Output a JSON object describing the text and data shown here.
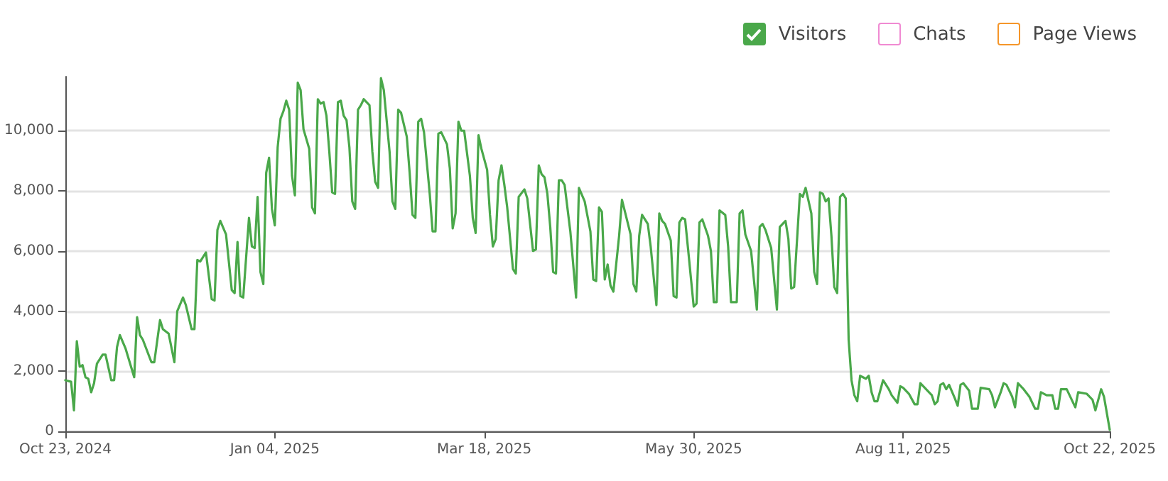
{
  "chart_data": {
    "type": "line",
    "legend": "top right",
    "grid": "y",
    "marker": "none",
    "line_style": "solid",
    "xlim": [
      "2024-10-23",
      "2025-10-22"
    ],
    "xticks": [
      {
        "value": "2024-10-23",
        "label": "Oct 23, 2024"
      },
      {
        "value": "2025-01-04",
        "label": "Jan 04, 2025"
      },
      {
        "value": "2025-03-18",
        "label": "Mar 18, 2025"
      },
      {
        "value": "2025-05-30",
        "label": "May 30, 2025"
      },
      {
        "value": "2025-08-11",
        "label": "Aug 11, 2025"
      },
      {
        "value": "2025-10-22",
        "label": "Oct 22, 2025"
      }
    ],
    "ylim": [
      0,
      11800
    ],
    "yticks": [
      0,
      {
        "value": 2000,
        "label": "2,000"
      },
      {
        "value": 4000,
        "label": "4,000"
      },
      {
        "value": 6000,
        "label": "6,000"
      },
      {
        "value": 8000,
        "label": "8,000"
      },
      {
        "value": 10000,
        "label": "10,000"
      }
    ],
    "series": [
      {
        "name": "Visitors",
        "color": "#4aa84a",
        "x": [
          "2024-10-23",
          "2024-10-25",
          "2024-10-26",
          "2024-10-27",
          "2024-10-28",
          "2024-10-29",
          "2024-10-30",
          "2024-10-31",
          "2024-11-01",
          "2024-11-02",
          "2024-11-03",
          "2024-11-05",
          "2024-11-06",
          "2024-11-08",
          "2024-11-09",
          "2024-11-10",
          "2024-11-11",
          "2024-11-13",
          "2024-11-16",
          "2024-11-17",
          "2024-11-18",
          "2024-11-19",
          "2024-11-22",
          "2024-11-23",
          "2024-11-25",
          "2024-11-26",
          "2024-11-28",
          "2024-11-30",
          "2024-12-01",
          "2024-12-03",
          "2024-12-04",
          "2024-12-06",
          "2024-12-07",
          "2024-12-08",
          "2024-12-09",
          "2024-12-11",
          "2024-12-13",
          "2024-12-14",
          "2024-12-15",
          "2024-12-16",
          "2024-12-18",
          "2024-12-20",
          "2024-12-21",
          "2024-12-22",
          "2024-12-23",
          "2024-12-24",
          "2024-12-26",
          "2024-12-27",
          "2024-12-28",
          "2024-12-29",
          "2024-12-30",
          "2024-12-31",
          "2025-01-01",
          "2025-01-02",
          "2025-01-03",
          "2025-01-04",
          "2025-01-05",
          "2025-01-06",
          "2025-01-07",
          "2025-01-08",
          "2025-01-09",
          "2025-01-10",
          "2025-01-11",
          "2025-01-12",
          "2025-01-13",
          "2025-01-14",
          "2025-01-16",
          "2025-01-17",
          "2025-01-18",
          "2025-01-19",
          "2025-01-20",
          "2025-01-21",
          "2025-01-22",
          "2025-01-23",
          "2025-01-24",
          "2025-01-25",
          "2025-01-26",
          "2025-01-27",
          "2025-01-28",
          "2025-01-29",
          "2025-01-30",
          "2025-01-31",
          "2025-02-01",
          "2025-02-02",
          "2025-02-03",
          "2025-02-04",
          "2025-02-06",
          "2025-02-07",
          "2025-02-08",
          "2025-02-09",
          "2025-02-10",
          "2025-02-11",
          "2025-02-13",
          "2025-02-14",
          "2025-02-15",
          "2025-02-16",
          "2025-02-17",
          "2025-02-19",
          "2025-02-20",
          "2025-02-21",
          "2025-02-22",
          "2025-02-23",
          "2025-02-24",
          "2025-02-25",
          "2025-02-27",
          "2025-02-28",
          "2025-03-01",
          "2025-03-02",
          "2025-03-03",
          "2025-03-05",
          "2025-03-06",
          "2025-03-07",
          "2025-03-08",
          "2025-03-09",
          "2025-03-10",
          "2025-03-11",
          "2025-03-13",
          "2025-03-14",
          "2025-03-15",
          "2025-03-16",
          "2025-03-17",
          "2025-03-19",
          "2025-03-20",
          "2025-03-21",
          "2025-03-22",
          "2025-03-23",
          "2025-03-24",
          "2025-03-25",
          "2025-03-26",
          "2025-03-28",
          "2025-03-29",
          "2025-03-30",
          "2025-04-01",
          "2025-04-02",
          "2025-04-04",
          "2025-04-05",
          "2025-04-06",
          "2025-04-07",
          "2025-04-08",
          "2025-04-09",
          "2025-04-10",
          "2025-04-11",
          "2025-04-12",
          "2025-04-13",
          "2025-04-14",
          "2025-04-15",
          "2025-04-17",
          "2025-04-19",
          "2025-04-20",
          "2025-04-22",
          "2025-04-24",
          "2025-04-25",
          "2025-04-26",
          "2025-04-27",
          "2025-04-28",
          "2025-04-29",
          "2025-04-30",
          "2025-05-01",
          "2025-05-02",
          "2025-05-04",
          "2025-05-05",
          "2025-05-08",
          "2025-05-09",
          "2025-05-10",
          "2025-05-11",
          "2025-05-12",
          "2025-05-14",
          "2025-05-15",
          "2025-05-17",
          "2025-05-18",
          "2025-05-19",
          "2025-05-20",
          "2025-05-22",
          "2025-05-23",
          "2025-05-24",
          "2025-05-25",
          "2025-05-26",
          "2025-05-27",
          "2025-05-28",
          "2025-05-30",
          "2025-05-31",
          "2025-06-01",
          "2025-06-02",
          "2025-06-04",
          "2025-06-05",
          "2025-06-06",
          "2025-06-07",
          "2025-06-08",
          "2025-06-10",
          "2025-06-11",
          "2025-06-12",
          "2025-06-14",
          "2025-06-15",
          "2025-06-16",
          "2025-06-17",
          "2025-06-19",
          "2025-06-21",
          "2025-06-22",
          "2025-06-23",
          "2025-06-24",
          "2025-06-26",
          "2025-06-28",
          "2025-06-29",
          "2025-07-01",
          "2025-07-02",
          "2025-07-03",
          "2025-07-04",
          "2025-07-06",
          "2025-07-07",
          "2025-07-08",
          "2025-07-10",
          "2025-07-11",
          "2025-07-12",
          "2025-07-13",
          "2025-07-14",
          "2025-07-15",
          "2025-07-16",
          "2025-07-17",
          "2025-07-18",
          "2025-07-19",
          "2025-07-20",
          "2025-07-21",
          "2025-07-22",
          "2025-07-23",
          "2025-07-24",
          "2025-07-25",
          "2025-07-26",
          "2025-07-27",
          "2025-07-28",
          "2025-07-29",
          "2025-07-30",
          "2025-07-31",
          "2025-08-01",
          "2025-08-02",
          "2025-08-04",
          "2025-08-06",
          "2025-08-07",
          "2025-08-09",
          "2025-08-10",
          "2025-08-11",
          "2025-08-13",
          "2025-08-15",
          "2025-08-16",
          "2025-08-17",
          "2025-08-19",
          "2025-08-21",
          "2025-08-22",
          "2025-08-23",
          "2025-08-24",
          "2025-08-25",
          "2025-08-26",
          "2025-08-27",
          "2025-08-29",
          "2025-08-30",
          "2025-08-31",
          "2025-09-01",
          "2025-09-03",
          "2025-09-04",
          "2025-09-06",
          "2025-09-07",
          "2025-09-10",
          "2025-09-11",
          "2025-09-12",
          "2025-09-14",
          "2025-09-15",
          "2025-09-16",
          "2025-09-18",
          "2025-09-19",
          "2025-09-20",
          "2025-09-22",
          "2025-09-24",
          "2025-09-26",
          "2025-09-27",
          "2025-09-28",
          "2025-09-30",
          "2025-10-02",
          "2025-10-03",
          "2025-10-04",
          "2025-10-05",
          "2025-10-07",
          "2025-10-08",
          "2025-10-10",
          "2025-10-11",
          "2025-10-14",
          "2025-10-16",
          "2025-10-17",
          "2025-10-19",
          "2025-10-20",
          "2025-10-22"
        ],
        "values": [
          1700,
          1650,
          700,
          3000,
          2150,
          2200,
          1800,
          1750,
          1300,
          1600,
          2250,
          2550,
          2550,
          1700,
          1700,
          2800,
          3200,
          2750,
          1800,
          3800,
          3200,
          3050,
          2300,
          2300,
          3700,
          3400,
          3250,
          2300,
          4000,
          4450,
          4200,
          3400,
          3400,
          5700,
          5650,
          5950,
          4400,
          4350,
          6700,
          7000,
          6550,
          4700,
          4600,
          6300,
          4500,
          4450,
          7100,
          6150,
          6100,
          7800,
          5300,
          4900,
          8600,
          9100,
          7400,
          6850,
          9450,
          10400,
          10650,
          11000,
          10700,
          8500,
          7850,
          11600,
          11350,
          10050,
          9400,
          7450,
          7250,
          11050,
          10900,
          10950,
          10500,
          9300,
          7950,
          7900,
          10950,
          11000,
          10500,
          10350,
          9450,
          7650,
          7400,
          10700,
          10850,
          11050,
          10850,
          9300,
          8300,
          8100,
          11750,
          11350,
          9300,
          7650,
          7400,
          10700,
          10600,
          9800,
          8600,
          7200,
          7100,
          10300,
          10400,
          9950,
          7900,
          6650,
          6650,
          9900,
          9950,
          9550,
          8750,
          6750,
          7250,
          10300,
          10000,
          10000,
          8500,
          7100,
          6600,
          9850,
          9400,
          8700,
          7200,
          6150,
          6400,
          8350,
          8850,
          8200,
          7450,
          5400,
          5250,
          7800,
          8050,
          7750,
          6000,
          6050,
          8850,
          8550,
          8450,
          7900,
          6800,
          5300,
          5250,
          8350,
          8350,
          8200,
          6650,
          4450,
          8100,
          7650,
          6650,
          5050,
          5000,
          7450,
          7300,
          5050,
          5550,
          4850,
          4650,
          6500,
          7700,
          6550,
          4900,
          4650,
          6500,
          7200,
          6900,
          6150,
          4200,
          7250,
          7000,
          6900,
          6350,
          4500,
          4450,
          6950,
          7100,
          7050,
          6100,
          4150,
          4250,
          6950,
          7050,
          6500,
          6000,
          4300,
          4300,
          7350,
          7200,
          6150,
          4300,
          4300,
          7250,
          7350,
          6550,
          6000,
          4050,
          6800,
          6900,
          6700,
          6100,
          4050,
          6800,
          7000,
          6400,
          4750,
          4800,
          7900,
          7800,
          8100,
          7250,
          5300,
          4900,
          7950,
          7900,
          7650,
          7750,
          6500,
          4800,
          4600,
          7800,
          7900,
          7750,
          3050,
          1700,
          1200,
          1000,
          1850,
          1800,
          1750,
          1850,
          1300,
          1000,
          1000,
          1700,
          1400,
          1200,
          950,
          1500,
          1450,
          1250,
          900,
          900,
          1600,
          1400,
          1200,
          900,
          1000,
          1550,
          1600,
          1400,
          1550,
          1100,
          850,
          1550,
          1600,
          1350,
          750,
          750,
          1450,
          1400,
          1200,
          800,
          1300,
          1600,
          1550,
          1150,
          800,
          1600,
          1400,
          1150,
          750,
          750,
          1300,
          1200,
          1200,
          750,
          750,
          1400,
          1400,
          1200,
          800,
          1300,
          1250,
          1050,
          700,
          1400,
          1150,
          50
        ]
      },
      {
        "name": "Chats",
        "color": "#f08ad2"
      },
      {
        "name": "Page Views",
        "color": "#f5962a"
      }
    ]
  }
}
